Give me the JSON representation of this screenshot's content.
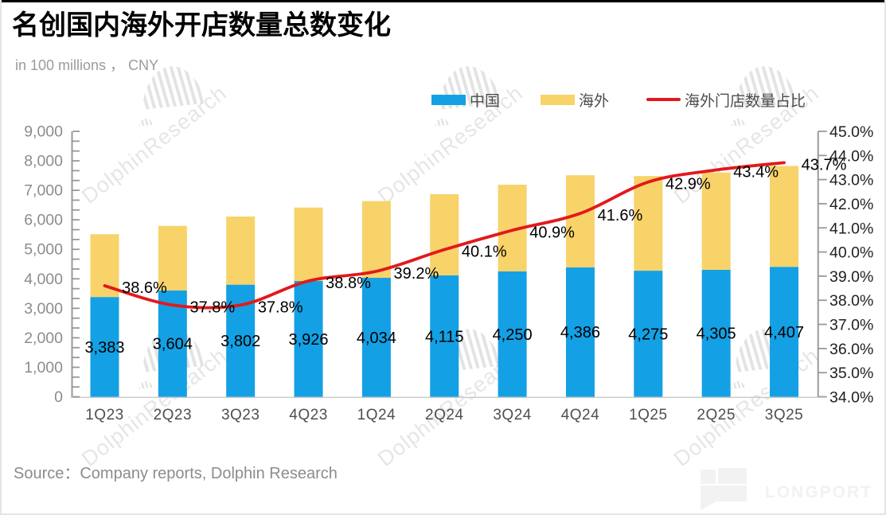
{
  "header": {
    "title": "名创国内海外开店数量总数变化",
    "subtitle": "in 100 millions ， CNY"
  },
  "legend": [
    {
      "label": "中国",
      "color": "#14a0e4",
      "type": "bar"
    },
    {
      "label": "海外",
      "color": "#f8d36a",
      "type": "bar"
    },
    {
      "label": "海外门店数量占比",
      "color": "#e2191c",
      "type": "line"
    }
  ],
  "chart_data": {
    "type": "bar",
    "subtype": "stacked-bar-with-line",
    "title": "名创国内海外开店数量总数变化",
    "categories": [
      "1Q23",
      "2Q23",
      "3Q23",
      "4Q23",
      "1Q24",
      "2Q24",
      "3Q24",
      "4Q24",
      "1Q25",
      "2Q25",
      "3Q25"
    ],
    "series": [
      {
        "name": "中国",
        "type": "bar",
        "stack": "total",
        "color": "#14a0e4",
        "values": [
          3383,
          3604,
          3802,
          3926,
          4034,
          4115,
          4250,
          4386,
          4275,
          4305,
          4407
        ],
        "labels": [
          "3,383",
          "3,604",
          "3,802",
          "3,926",
          "4,034",
          "4,115",
          "4,250",
          "4,386",
          "4,275",
          "4,305",
          "4,407"
        ]
      },
      {
        "name": "海外",
        "type": "bar",
        "stack": "total",
        "color": "#f8d36a",
        "values": [
          2130,
          2190,
          2310,
          2490,
          2600,
          2755,
          2940,
          3125,
          3210,
          3300,
          3420
        ],
        "values_note": "estimated from bar heights"
      },
      {
        "name": "海外门店数量占比",
        "type": "line",
        "color": "#e2191c",
        "yaxis": "right",
        "values": [
          38.6,
          37.8,
          37.8,
          38.8,
          39.2,
          40.1,
          40.9,
          41.6,
          42.9,
          43.4,
          43.7
        ],
        "labels": [
          "38.6%",
          "37.8%",
          "37.8%",
          "38.8%",
          "39.2%",
          "40.1%",
          "40.9%",
          "41.6%",
          "42.9%",
          "43.4%",
          "43.7%"
        ]
      }
    ],
    "left_axis": {
      "min": 0,
      "max": 9000,
      "step": 1000,
      "tick_labels": [
        "0",
        "1,000",
        "2,000",
        "3,000",
        "4,000",
        "5,000",
        "6,000",
        "7,000",
        "8,000",
        "9,000"
      ]
    },
    "right_axis": {
      "min": 34.0,
      "max": 45.0,
      "step": 1.0,
      "tick_labels": [
        "34.0%",
        "35.0%",
        "36.0%",
        "37.0%",
        "38.0%",
        "39.0%",
        "40.0%",
        "41.0%",
        "42.0%",
        "43.0%",
        "44.0%",
        "45.0%"
      ]
    },
    "grid": false,
    "legend_position": "top-right"
  },
  "footer": {
    "source": "Source：Company reports, Dolphin Research"
  },
  "watermark": {
    "text": "DolphinResearch"
  },
  "brand": {
    "logo_text": "LONGPORT"
  }
}
